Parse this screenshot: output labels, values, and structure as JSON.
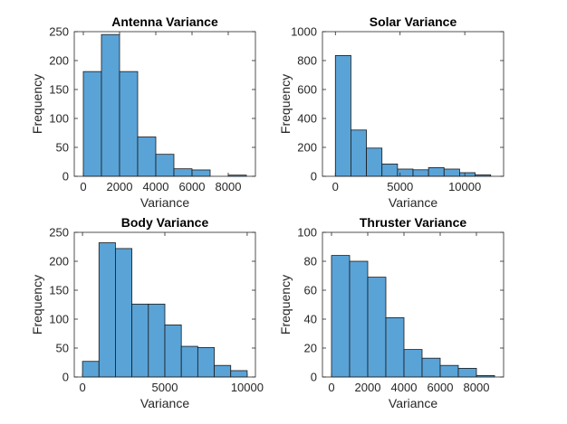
{
  "figure": {
    "background": "#ffffff",
    "bar_color": "#5aa3d7",
    "edge_color": "#1a1a1a"
  },
  "chart_data": [
    {
      "type": "bar",
      "subtype": "histogram",
      "title": "Antenna Variance",
      "xlabel": "Variance",
      "ylabel": "Frequency",
      "bin_edges": [
        0,
        1000,
        2000,
        3000,
        4000,
        5000,
        6000,
        7000,
        8000,
        9000
      ],
      "values": [
        181,
        245,
        181,
        68,
        38,
        13,
        11,
        0,
        2
      ],
      "xlim": [
        -500,
        9500
      ],
      "ylim": [
        0,
        250
      ],
      "xticks": [
        0,
        2000,
        4000,
        6000,
        8000
      ],
      "yticks": [
        0,
        50,
        100,
        150,
        200,
        250
      ],
      "grid": false
    },
    {
      "type": "bar",
      "subtype": "histogram",
      "title": "Solar Variance",
      "xlabel": "Variance",
      "ylabel": "Frequency",
      "bin_edges": [
        0,
        1200,
        2400,
        3600,
        4800,
        6000,
        7200,
        8400,
        9600,
        10800,
        12000
      ],
      "values": [
        835,
        320,
        195,
        85,
        50,
        45,
        60,
        50,
        25,
        10
      ],
      "xlim": [
        -1000,
        13000
      ],
      "ylim": [
        0,
        1000
      ],
      "xticks": [
        0,
        5000,
        10000
      ],
      "yticks": [
        0,
        200,
        400,
        600,
        800,
        1000
      ],
      "grid": false
    },
    {
      "type": "bar",
      "subtype": "histogram",
      "title": "Body Variance",
      "xlabel": "Variance",
      "ylabel": "Frequency",
      "bin_edges": [
        0,
        1000,
        2000,
        3000,
        4000,
        5000,
        6000,
        7000,
        8000,
        9000,
        10000
      ],
      "values": [
        27,
        232,
        222,
        126,
        126,
        90,
        53,
        51,
        20,
        11
      ],
      "xlim": [
        -500,
        10500
      ],
      "ylim": [
        0,
        250
      ],
      "xticks": [
        0,
        5000,
        10000
      ],
      "yticks": [
        0,
        50,
        100,
        150,
        200,
        250
      ],
      "grid": false
    },
    {
      "type": "bar",
      "subtype": "histogram",
      "title": "Thruster Variance",
      "xlabel": "Variance",
      "ylabel": "Frequency",
      "bin_edges": [
        0,
        1000,
        2000,
        3000,
        4000,
        5000,
        6000,
        7000,
        8000,
        9000
      ],
      "values": [
        84,
        80,
        69,
        41,
        19,
        13,
        8,
        6,
        1
      ],
      "xlim": [
        -500,
        9500
      ],
      "ylim": [
        0,
        100
      ],
      "xticks": [
        0,
        2000,
        4000,
        6000,
        8000
      ],
      "yticks": [
        0,
        20,
        40,
        60,
        80,
        100
      ],
      "grid": false
    }
  ]
}
